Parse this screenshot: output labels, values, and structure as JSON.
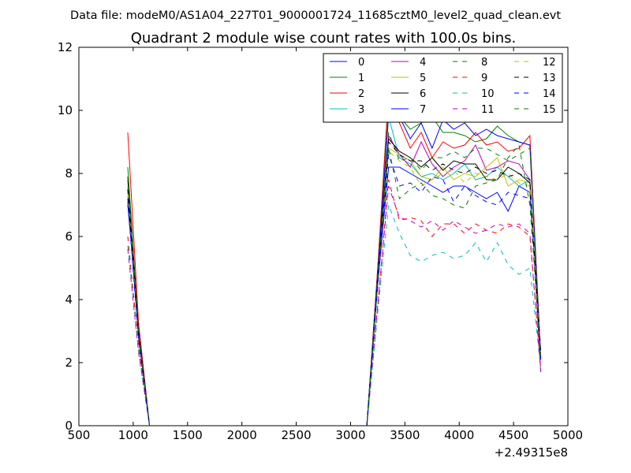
{
  "header": {
    "suptitle": "Data file: modeM0/AS1A04_227T01_9000001724_11685cztM0_level2_quad_clean.evt"
  },
  "chart_data": {
    "type": "line",
    "title": "Quadrant 2 module wise count rates with 100.0s bins.",
    "xlabel": "",
    "ylabel": "",
    "x_offset_label": "+2.49315e8",
    "xlim": [
      500,
      5000
    ],
    "ylim": [
      0,
      12
    ],
    "x_ticks": [
      500,
      1000,
      1500,
      2000,
      2500,
      3000,
      3500,
      4000,
      4500,
      5000
    ],
    "y_ticks": [
      0,
      2,
      4,
      6,
      8,
      10,
      12
    ],
    "grid": false,
    "legend_position": "top-right",
    "legend_columns": 4,
    "x": [
      950,
      1050,
      1150,
      1250,
      1350,
      1450,
      1550,
      1650,
      1750,
      1850,
      1950,
      2050,
      2150,
      2250,
      2350,
      2450,
      2550,
      2650,
      2750,
      2850,
      2950,
      3050,
      3150,
      3250,
      3350,
      3450,
      3550,
      3650,
      3750,
      3850,
      3950,
      4050,
      4150,
      4250,
      4350,
      4450,
      4550,
      4650,
      4750
    ],
    "series": [
      {
        "name": "0",
        "color": "#0000ff",
        "dash": "solid",
        "values": [
          7.0,
          3.2,
          0,
          0,
          0,
          0,
          0,
          0,
          0,
          0,
          0,
          0,
          0,
          0,
          0,
          0,
          0,
          0,
          0,
          0,
          0,
          0,
          0,
          4.5,
          8.2,
          8.2,
          8.0,
          7.8,
          7.6,
          7.4,
          7.6,
          7.6,
          7.4,
          7.2,
          7.4,
          6.8,
          7.6,
          7.4,
          2.4
        ]
      },
      {
        "name": "1",
        "color": "#008000",
        "dash": "solid",
        "values": [
          8.2,
          3.0,
          0,
          0,
          0,
          0,
          0,
          0,
          0,
          0,
          0,
          0,
          0,
          0,
          0,
          0,
          0,
          0,
          0,
          0,
          0,
          0,
          0,
          5.0,
          10.6,
          9.8,
          9.4,
          9.6,
          9.8,
          9.3,
          9.3,
          9.2,
          9.0,
          9.1,
          9.5,
          9.2,
          9.0,
          8.9,
          2.2
        ]
      },
      {
        "name": "2",
        "color": "#ff0000",
        "dash": "solid",
        "values": [
          9.3,
          3.2,
          0,
          0,
          0,
          0,
          0,
          0,
          0,
          0,
          0,
          0,
          0,
          0,
          0,
          0,
          0,
          0,
          0,
          0,
          0,
          0,
          0,
          5.0,
          10.4,
          9.6,
          8.8,
          9.3,
          8.5,
          9.0,
          8.8,
          8.9,
          9.3,
          8.9,
          9.0,
          8.7,
          8.8,
          9.2,
          2.2
        ]
      },
      {
        "name": "3",
        "color": "#00bfbf",
        "dash": "solid",
        "values": [
          7.3,
          2.9,
          0,
          0,
          0,
          0,
          0,
          0,
          0,
          0,
          0,
          0,
          0,
          0,
          0,
          0,
          0,
          0,
          0,
          0,
          0,
          0,
          0,
          4.8,
          9.8,
          8.5,
          8.3,
          7.9,
          8.0,
          7.8,
          8.0,
          8.3,
          7.8,
          7.9,
          8.2,
          7.9,
          7.6,
          7.8,
          2.3
        ]
      },
      {
        "name": "4",
        "color": "#bf00bf",
        "dash": "solid",
        "values": [
          7.5,
          2.8,
          0,
          0,
          0,
          0,
          0,
          0,
          0,
          0,
          0,
          0,
          0,
          0,
          0,
          0,
          0,
          0,
          0,
          0,
          0,
          0,
          0,
          4.7,
          9.2,
          8.6,
          8.2,
          9.0,
          8.3,
          7.9,
          8.2,
          8.4,
          8.9,
          8.1,
          8.2,
          8.4,
          8.3,
          7.8,
          1.7
        ]
      },
      {
        "name": "5",
        "color": "#bfbf00",
        "dash": "solid",
        "values": [
          7.6,
          2.9,
          0,
          0,
          0,
          0,
          0,
          0,
          0,
          0,
          0,
          0,
          0,
          0,
          0,
          0,
          0,
          0,
          0,
          0,
          0,
          0,
          0,
          4.6,
          8.8,
          8.6,
          8.4,
          7.9,
          7.8,
          8.2,
          7.8,
          8.0,
          7.9,
          8.2,
          8.5,
          7.6,
          7.8,
          7.7,
          2.2
        ]
      },
      {
        "name": "6",
        "color": "#000000",
        "dash": "solid",
        "values": [
          7.8,
          3.0,
          0,
          0,
          0,
          0,
          0,
          0,
          0,
          0,
          0,
          0,
          0,
          0,
          0,
          0,
          0,
          0,
          0,
          0,
          0,
          0,
          0,
          4.8,
          9.1,
          8.7,
          8.5,
          8.2,
          8.5,
          8.1,
          8.4,
          8.3,
          8.3,
          7.8,
          7.8,
          8.2,
          8.0,
          7.7,
          2.1
        ]
      },
      {
        "name": "7",
        "color": "#0000ff",
        "dash": "solid",
        "values": [
          7.2,
          2.8,
          0,
          0,
          0,
          0,
          0,
          0,
          0,
          0,
          0,
          0,
          0,
          0,
          0,
          0,
          0,
          0,
          0,
          0,
          0,
          0,
          0,
          4.8,
          9.9,
          9.8,
          9.1,
          9.6,
          8.8,
          9.7,
          9.4,
          9.6,
          9.2,
          9.4,
          9.2,
          9.1,
          9.0,
          8.9,
          2.1
        ]
      },
      {
        "name": "8",
        "color": "#008000",
        "dash": "dashed",
        "values": [
          7.9,
          2.9,
          0,
          0,
          0,
          0,
          0,
          0,
          0,
          0,
          0,
          0,
          0,
          0,
          0,
          0,
          0,
          0,
          0,
          0,
          0,
          0,
          0,
          4.6,
          9.3,
          8.4,
          8.5,
          8.1,
          8.5,
          8.5,
          8.7,
          8.5,
          8.8,
          8.8,
          8.6,
          8.4,
          8.6,
          8.8,
          2.2
        ]
      },
      {
        "name": "9",
        "color": "#ff0000",
        "dash": "dashed",
        "values": [
          6.0,
          2.5,
          0,
          0,
          0,
          0,
          0,
          0,
          0,
          0,
          0,
          0,
          0,
          0,
          0,
          0,
          0,
          0,
          0,
          0,
          0,
          0,
          0,
          3.8,
          7.8,
          6.5,
          6.6,
          6.5,
          6.0,
          6.4,
          6.4,
          6.1,
          6.4,
          6.2,
          6.1,
          6.4,
          6.3,
          6.0,
          1.8
        ]
      },
      {
        "name": "10",
        "color": "#00bfbf",
        "dash": "dashed",
        "values": [
          5.7,
          2.3,
          0,
          0,
          0,
          0,
          0,
          0,
          0,
          0,
          0,
          0,
          0,
          0,
          0,
          0,
          0,
          0,
          0,
          0,
          0,
          0,
          0,
          3.6,
          7.0,
          6.1,
          5.4,
          5.2,
          5.4,
          5.5,
          5.3,
          5.4,
          5.8,
          5.2,
          5.8,
          5.1,
          4.8,
          5.0,
          1.8
        ]
      },
      {
        "name": "11",
        "color": "#bf00bf",
        "dash": "dashed",
        "values": [
          5.6,
          2.3,
          0,
          0,
          0,
          0,
          0,
          0,
          0,
          0,
          0,
          0,
          0,
          0,
          0,
          0,
          0,
          0,
          0,
          0,
          0,
          0,
          0,
          3.8,
          7.6,
          6.6,
          6.5,
          6.3,
          6.5,
          6.2,
          6.5,
          6.3,
          6.1,
          6.2,
          6.4,
          6.3,
          6.4,
          6.1,
          1.7
        ]
      },
      {
        "name": "12",
        "color": "#bfbf00",
        "dash": "dashed",
        "values": [
          7.4,
          2.8,
          0,
          0,
          0,
          0,
          0,
          0,
          0,
          0,
          0,
          0,
          0,
          0,
          0,
          0,
          0,
          0,
          0,
          0,
          0,
          0,
          0,
          4.5,
          8.7,
          8.4,
          8.2,
          7.6,
          7.8,
          8.0,
          8.1,
          7.7,
          8.0,
          7.9,
          7.8,
          8.0,
          7.7,
          7.6,
          2.2
        ]
      },
      {
        "name": "13",
        "color": "#000000",
        "dash": "dashed",
        "values": [
          7.5,
          2.8,
          0,
          0,
          0,
          0,
          0,
          0,
          0,
          0,
          0,
          0,
          0,
          0,
          0,
          0,
          0,
          0,
          0,
          0,
          0,
          0,
          0,
          4.6,
          9.0,
          8.6,
          8.4,
          8.4,
          8.1,
          8.3,
          8.1,
          8.0,
          8.2,
          8.0,
          8.1,
          7.9,
          8.0,
          7.8,
          2.2
        ]
      },
      {
        "name": "14",
        "color": "#0000ff",
        "dash": "dashed",
        "values": [
          7.1,
          2.7,
          0,
          0,
          0,
          0,
          0,
          0,
          0,
          0,
          0,
          0,
          0,
          0,
          0,
          0,
          0,
          0,
          0,
          0,
          0,
          0,
          0,
          4.4,
          8.6,
          7.6,
          7.7,
          7.4,
          7.9,
          7.8,
          7.1,
          7.6,
          7.3,
          7.1,
          7.0,
          7.4,
          7.3,
          7.2,
          2.1
        ]
      },
      {
        "name": "15",
        "color": "#008000",
        "dash": "dashed",
        "values": [
          7.9,
          2.9,
          0,
          0,
          0,
          0,
          0,
          0,
          0,
          0,
          0,
          0,
          0,
          0,
          0,
          0,
          0,
          0,
          0,
          0,
          0,
          0,
          0,
          4.7,
          8.8,
          7.2,
          7.5,
          7.7,
          7.3,
          7.2,
          7.0,
          6.9,
          7.6,
          7.7,
          7.8,
          8.5,
          8.9,
          7.0,
          2.2
        ]
      }
    ]
  }
}
